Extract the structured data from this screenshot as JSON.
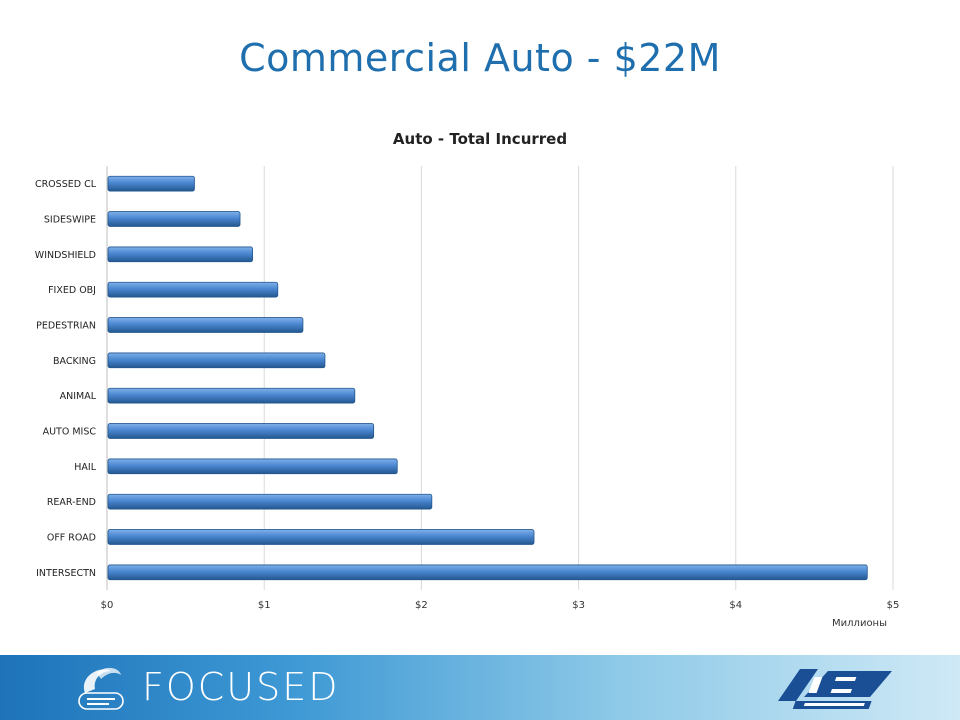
{
  "slide": {
    "title": "Commercial Auto - $22M"
  },
  "footer": {
    "tagline": "FOCUSED",
    "left_logo": "trusted-choice-logo",
    "right_logo": "emc-insurance-logo"
  },
  "colors": {
    "title": "#1f6fae",
    "bar": "#4a86d0",
    "bar_dark": "#23578f",
    "grid": "#d9d9d9"
  },
  "chart_data": {
    "type": "bar",
    "orientation": "horizontal",
    "title": "Auto - Total Incurred",
    "xlabel": "",
    "ylabel": "",
    "unit_label": "Миллионы",
    "categories": [
      "CROSSED CL",
      "SIDESWIPE",
      "WINDSHIELD",
      "FIXED OBJ",
      "PEDESTRIAN",
      "BACKING",
      "ANIMAL",
      "AUTO MISC",
      "HAIL",
      "REAR-END",
      "OFF ROAD",
      "INTERSECTN"
    ],
    "values": [
      0.55,
      0.84,
      0.92,
      1.08,
      1.24,
      1.38,
      1.57,
      1.69,
      1.84,
      2.06,
      2.71,
      4.83
    ],
    "xlim": [
      0,
      5
    ],
    "xticks": [
      0,
      1,
      2,
      3,
      4,
      5
    ],
    "xtick_labels": [
      "$0",
      "$1",
      "$2",
      "$3",
      "$4",
      "$5"
    ],
    "grid": "vertical",
    "legend": "none"
  }
}
